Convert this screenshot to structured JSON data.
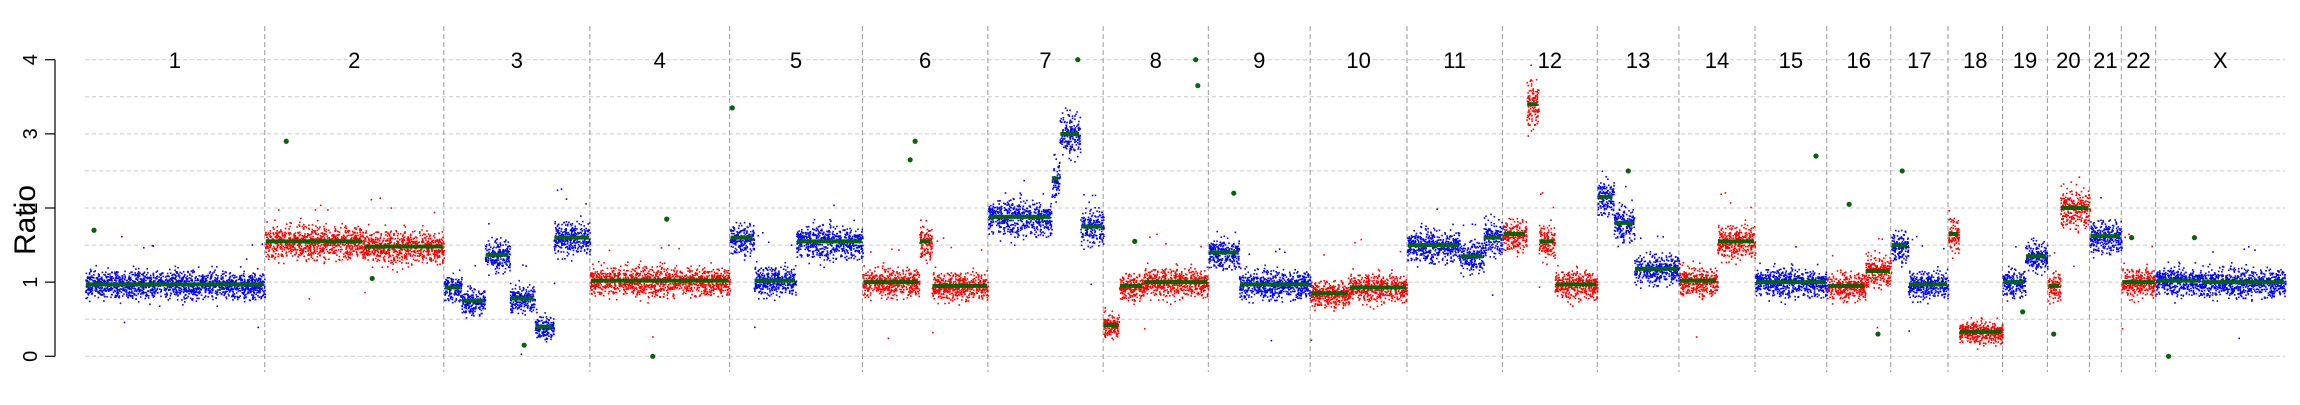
{
  "chart_data": {
    "type": "scatter",
    "ylabel": "Ratio",
    "ylim": [
      -0.05,
      4.05
    ],
    "yticks": [
      0,
      1,
      2,
      3,
      4
    ],
    "grid": true,
    "colors": {
      "odd": "#0000ff",
      "even": "#ff0000",
      "segment": "#006400",
      "grid": "#cccccc",
      "separator": "#999999"
    },
    "chromosomes": [
      {
        "label": "1",
        "start": 0,
        "end": 0.0817,
        "color": "blue",
        "segments": [
          {
            "s": 0,
            "e": 1,
            "y": 0.97
          }
        ],
        "outliers": [
          {
            "x": 0.05,
            "y": 1.7
          }
        ]
      },
      {
        "label": "2",
        "start": 0.0817,
        "end": 0.1631,
        "color": "red",
        "segments": [
          {
            "s": 0,
            "e": 0.55,
            "y": 1.55
          },
          {
            "s": 0.55,
            "e": 1,
            "y": 1.48
          }
        ],
        "outliers": [
          {
            "x": 0.12,
            "y": 2.9
          },
          {
            "x": 0.6,
            "y": 1.05
          }
        ]
      },
      {
        "label": "3",
        "start": 0.1631,
        "end": 0.2295,
        "color": "blue",
        "segments": [
          {
            "s": 0,
            "e": 0.12,
            "y": 0.93
          },
          {
            "s": 0.12,
            "e": 0.28,
            "y": 0.75
          },
          {
            "s": 0.28,
            "e": 0.45,
            "y": 1.37
          },
          {
            "s": 0.45,
            "e": 0.62,
            "y": 0.78
          },
          {
            "s": 0.62,
            "e": 0.75,
            "y": 0.4
          },
          {
            "s": 0.75,
            "e": 1,
            "y": 1.6
          }
        ],
        "outliers": [
          {
            "x": 0.55,
            "y": 0.15
          }
        ]
      },
      {
        "label": "4",
        "start": 0.2295,
        "end": 0.293,
        "color": "red",
        "segments": [
          {
            "s": 0,
            "e": 1,
            "y": 1.02
          }
        ],
        "outliers": [
          {
            "x": 0.45,
            "y": 0.0
          },
          {
            "x": 0.55,
            "y": 1.85
          }
        ]
      },
      {
        "label": "5",
        "start": 0.293,
        "end": 0.3534,
        "color": "blue",
        "segments": [
          {
            "s": 0,
            "e": 0.18,
            "y": 1.6
          },
          {
            "s": 0.18,
            "e": 0.5,
            "y": 1.02
          },
          {
            "s": 0.5,
            "e": 1,
            "y": 1.55
          }
        ],
        "outliers": [
          {
            "x": 0.02,
            "y": 3.35
          }
        ]
      },
      {
        "label": "6",
        "start": 0.3534,
        "end": 0.4104,
        "color": "red",
        "segments": [
          {
            "s": 0,
            "e": 0.45,
            "y": 1.0
          },
          {
            "s": 0.45,
            "e": 0.55,
            "y": 1.55
          },
          {
            "s": 0.55,
            "e": 1,
            "y": 0.95
          }
        ],
        "outliers": [
          {
            "x": 0.38,
            "y": 2.65
          },
          {
            "x": 0.42,
            "y": 2.9
          }
        ]
      },
      {
        "label": "7",
        "start": 0.4104,
        "end": 0.4628,
        "color": "blue",
        "segments": [
          {
            "s": 0,
            "e": 0.55,
            "y": 1.88
          },
          {
            "s": 0.55,
            "e": 0.62,
            "y": 2.4
          },
          {
            "s": 0.62,
            "e": 0.8,
            "y": 3.0
          },
          {
            "s": 0.8,
            "e": 1,
            "y": 1.75
          }
        ],
        "outliers": [
          {
            "x": 0.78,
            "y": 4.0
          }
        ]
      },
      {
        "label": "8",
        "start": 0.4628,
        "end": 0.5106,
        "color": "red",
        "segments": [
          {
            "s": 0,
            "e": 0.15,
            "y": 0.42
          },
          {
            "s": 0.15,
            "e": 0.38,
            "y": 0.95
          },
          {
            "s": 0.38,
            "e": 1,
            "y": 1.0
          }
        ],
        "outliers": [
          {
            "x": 0.88,
            "y": 4.0
          },
          {
            "x": 0.9,
            "y": 3.65
          },
          {
            "x": 0.3,
            "y": 1.55
          }
        ]
      },
      {
        "label": "9",
        "start": 0.5106,
        "end": 0.5569,
        "color": "blue",
        "segments": [
          {
            "s": 0,
            "e": 0.3,
            "y": 1.4
          },
          {
            "s": 0.3,
            "e": 1,
            "y": 0.97
          }
        ],
        "outliers": [
          {
            "x": 0.25,
            "y": 2.2
          }
        ]
      },
      {
        "label": "10",
        "start": 0.5569,
        "end": 0.6009,
        "color": "red",
        "segments": [
          {
            "s": 0,
            "e": 0.4,
            "y": 0.85
          },
          {
            "s": 0.4,
            "e": 1,
            "y": 0.93
          }
        ],
        "outliers": []
      },
      {
        "label": "11",
        "start": 0.6009,
        "end": 0.6443,
        "color": "blue",
        "segments": [
          {
            "s": 0,
            "e": 0.55,
            "y": 1.5
          },
          {
            "s": 0.55,
            "e": 0.8,
            "y": 1.35
          },
          {
            "s": 0.8,
            "e": 1,
            "y": 1.6
          }
        ],
        "outliers": []
      },
      {
        "label": "12",
        "start": 0.6443,
        "end": 0.6874,
        "color": "red",
        "segments": [
          {
            "s": 0,
            "e": 0.25,
            "y": 1.65
          },
          {
            "s": 0.25,
            "e": 0.38,
            "y": 3.4
          },
          {
            "s": 0.38,
            "e": 0.55,
            "y": 1.55
          },
          {
            "s": 0.55,
            "e": 1,
            "y": 0.97
          }
        ],
        "outliers": []
      },
      {
        "label": "13",
        "start": 0.6874,
        "end": 0.7245,
        "color": "blue",
        "segments": [
          {
            "s": 0,
            "e": 0.2,
            "y": 2.15
          },
          {
            "s": 0.2,
            "e": 0.45,
            "y": 1.8
          },
          {
            "s": 0.45,
            "e": 1,
            "y": 1.18
          }
        ],
        "outliers": [
          {
            "x": 0.38,
            "y": 2.5
          }
        ]
      },
      {
        "label": "14",
        "start": 0.7245,
        "end": 0.7591,
        "color": "red",
        "segments": [
          {
            "s": 0,
            "e": 0.5,
            "y": 1.02
          },
          {
            "s": 0.5,
            "e": 1,
            "y": 1.55
          }
        ],
        "outliers": []
      },
      {
        "label": "15",
        "start": 0.7591,
        "end": 0.7917,
        "color": "blue",
        "segments": [
          {
            "s": 0,
            "e": 1,
            "y": 1.0
          }
        ],
        "outliers": [
          {
            "x": 0.85,
            "y": 2.7
          }
        ]
      },
      {
        "label": "16",
        "start": 0.7917,
        "end": 0.8208,
        "color": "red",
        "segments": [
          {
            "s": 0,
            "e": 0.6,
            "y": 0.95
          },
          {
            "s": 0.6,
            "e": 1,
            "y": 1.15
          }
        ],
        "outliers": [
          {
            "x": 0.35,
            "y": 2.05
          },
          {
            "x": 0.8,
            "y": 0.3
          }
        ]
      },
      {
        "label": "17",
        "start": 0.8208,
        "end": 0.8468,
        "color": "blue",
        "segments": [
          {
            "s": 0,
            "e": 0.3,
            "y": 1.5
          },
          {
            "s": 0.3,
            "e": 1,
            "y": 0.97
          }
        ],
        "outliers": [
          {
            "x": 0.2,
            "y": 2.5
          }
        ]
      },
      {
        "label": "18",
        "start": 0.8468,
        "end": 0.8716,
        "color": "red",
        "segments": [
          {
            "s": 0,
            "e": 0.2,
            "y": 1.65
          },
          {
            "s": 0.2,
            "e": 1,
            "y": 0.33
          }
        ],
        "outliers": []
      },
      {
        "label": "19",
        "start": 0.8716,
        "end": 0.892,
        "color": "blue",
        "segments": [
          {
            "s": 0,
            "e": 0.5,
            "y": 1.0
          },
          {
            "s": 0.5,
            "e": 1,
            "y": 1.35
          }
        ],
        "outliers": [
          {
            "x": 0.45,
            "y": 0.6
          }
        ]
      },
      {
        "label": "20",
        "start": 0.892,
        "end": 0.9111,
        "color": "red",
        "segments": [
          {
            "s": 0,
            "e": 0.3,
            "y": 0.95
          },
          {
            "s": 0.3,
            "e": 1,
            "y": 2.0
          }
        ],
        "outliers": [
          {
            "x": 0.15,
            "y": 0.3
          }
        ]
      },
      {
        "label": "21",
        "start": 0.9111,
        "end": 0.9256,
        "color": "blue",
        "segments": [
          {
            "s": 0,
            "e": 1,
            "y": 1.62
          }
        ],
        "outliers": []
      },
      {
        "label": "22",
        "start": 0.9256,
        "end": 0.9412,
        "color": "red",
        "segments": [
          {
            "s": 0,
            "e": 1,
            "y": 1.0
          }
        ],
        "outliers": [
          {
            "x": 0.3,
            "y": 1.6
          }
        ]
      },
      {
        "label": "X",
        "start": 0.9412,
        "end": 1.0,
        "color": "blue",
        "segments": [
          {
            "s": 0,
            "e": 0.35,
            "y": 1.02
          },
          {
            "s": 0.35,
            "e": 1,
            "y": 1.0
          }
        ],
        "outliers": [
          {
            "x": 0.1,
            "y": 0.0
          },
          {
            "x": 0.3,
            "y": 1.6
          }
        ]
      }
    ]
  }
}
